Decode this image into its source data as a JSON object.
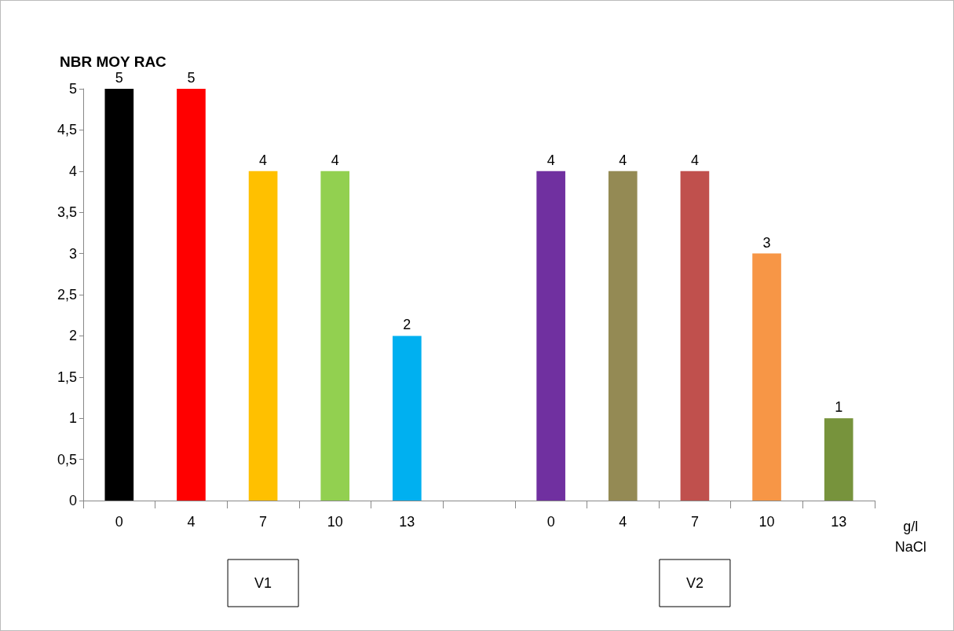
{
  "chart_data": {
    "type": "bar",
    "ylabel": "NBR MOY RAC",
    "xlabel": "g/l\nNaCl",
    "categories": [
      "0",
      "4",
      "7",
      "10",
      "13",
      null,
      "0",
      "4",
      "7",
      "10",
      "13"
    ],
    "values": [
      5,
      5,
      4,
      4,
      2,
      null,
      4,
      4,
      4,
      3,
      1
    ],
    "colors": [
      "#000000",
      "#ff0000",
      "#ffc000",
      "#92d050",
      "#00b0f0",
      null,
      "#7030a0",
      "#948a54",
      "#c0504d",
      "#f79646",
      "#77933c"
    ],
    "ylim": [
      0,
      5
    ],
    "yticks": [
      0,
      {
        "value": 0.5,
        "label": "0,5"
      },
      1,
      {
        "value": 1.5,
        "label": "1,5"
      },
      2,
      {
        "value": 2.5,
        "label": "2,5"
      },
      3,
      {
        "value": 3.5,
        "label": "3,5"
      },
      4,
      {
        "value": 4.5,
        "label": "4,5"
      },
      5
    ],
    "data_labels": true,
    "grid": false,
    "annotations": [
      "V1",
      "V2"
    ]
  }
}
